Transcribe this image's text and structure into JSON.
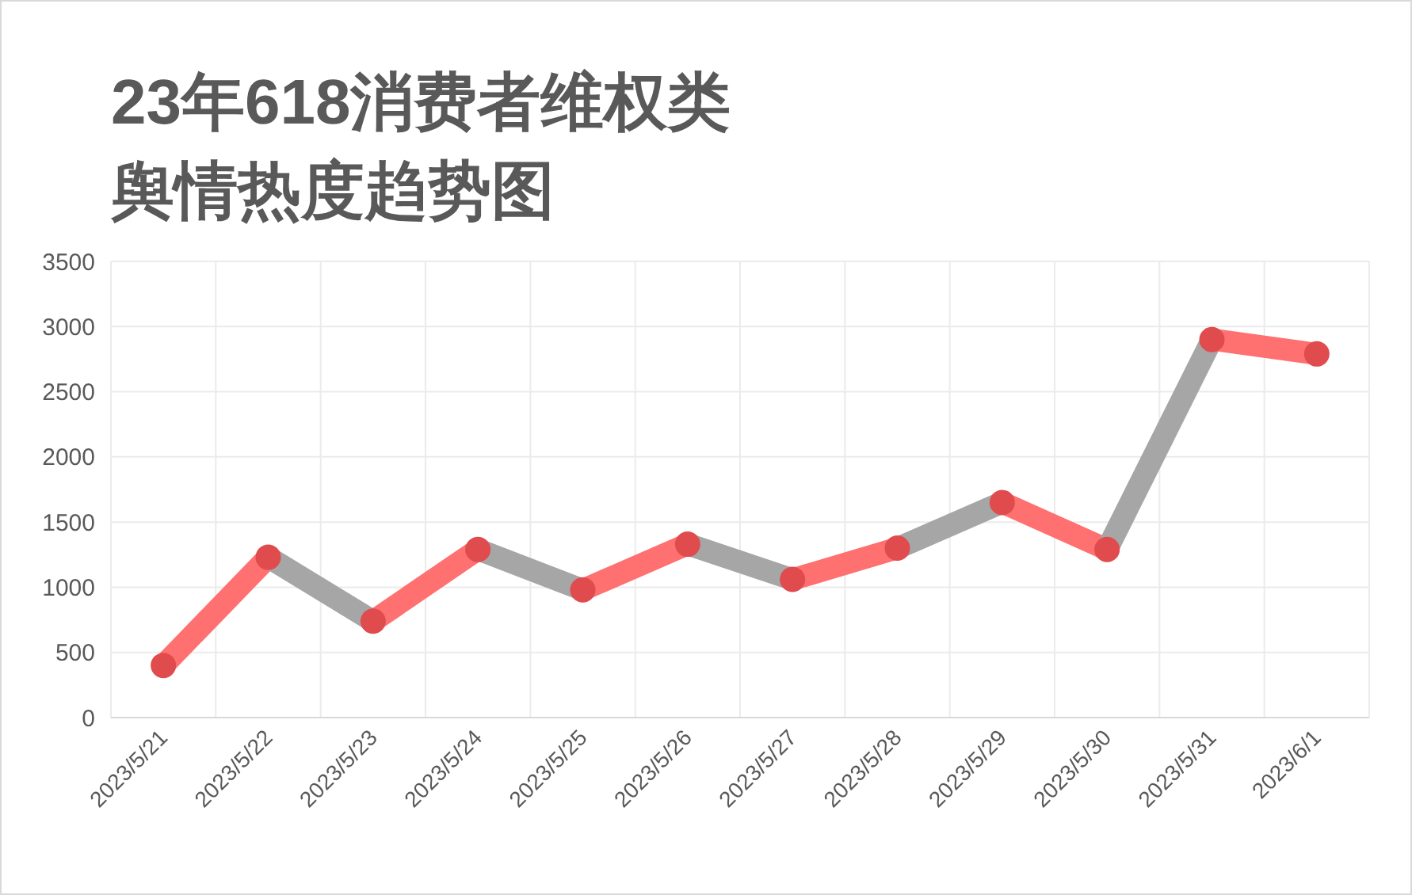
{
  "chart_data": {
    "type": "line",
    "title": "23年618消费者维权类舆情热度趋势图",
    "categories": [
      "2023/5/21",
      "2023/5/22",
      "2023/5/23",
      "2023/5/24",
      "2023/5/25",
      "2023/5/26",
      "2023/5/27",
      "2023/5/28",
      "2023/5/29",
      "2023/5/30",
      "2023/5/31",
      "2023/6/1"
    ],
    "series": [
      {
        "color": "#ff7070",
        "values": [
          400,
          1230,
          null,
          null,
          null,
          null,
          null,
          null,
          null,
          null,
          null,
          null
        ]
      },
      {
        "color": "#a6a6a6",
        "values": [
          null,
          1230,
          740,
          null,
          null,
          null,
          null,
          null,
          null,
          null,
          null,
          null
        ]
      },
      {
        "color": "#ff7070",
        "values": [
          null,
          null,
          740,
          1290,
          null,
          null,
          null,
          null,
          null,
          null,
          null,
          null
        ]
      },
      {
        "color": "#a6a6a6",
        "values": [
          null,
          null,
          null,
          1290,
          980,
          null,
          null,
          null,
          null,
          null,
          null,
          null
        ]
      },
      {
        "color": "#ff7070",
        "values": [
          null,
          null,
          null,
          null,
          980,
          1330,
          null,
          null,
          null,
          null,
          null,
          null
        ]
      },
      {
        "color": "#a6a6a6",
        "values": [
          null,
          null,
          null,
          null,
          null,
          1330,
          1060,
          null,
          null,
          null,
          null,
          null
        ]
      },
      {
        "color": "#ff7070",
        "values": [
          null,
          null,
          null,
          null,
          null,
          null,
          1060,
          1300,
          null,
          null,
          null,
          null
        ]
      },
      {
        "color": "#a6a6a6",
        "values": [
          null,
          null,
          null,
          null,
          null,
          null,
          null,
          1300,
          1650,
          null,
          null,
          null
        ]
      },
      {
        "color": "#ff7070",
        "values": [
          null,
          null,
          null,
          null,
          null,
          null,
          null,
          null,
          1650,
          1290,
          null,
          null
        ]
      },
      {
        "color": "#a6a6a6",
        "values": [
          null,
          null,
          null,
          null,
          null,
          null,
          null,
          null,
          null,
          1290,
          2900,
          null
        ]
      },
      {
        "color": "#ff7070",
        "values": [
          null,
          null,
          null,
          null,
          null,
          null,
          null,
          null,
          null,
          null,
          2900,
          2790
        ]
      },
      {
        "type": "scatter",
        "marker": "circle",
        "color": "#e04b4e",
        "values": [
          400,
          1230,
          740,
          1290,
          980,
          1330,
          1060,
          1300,
          1650,
          1290,
          2900,
          2790
        ]
      }
    ],
    "ylim": [
      0,
      3500
    ],
    "yticks": [
      0,
      500,
      1000,
      1500,
      2000,
      2500,
      3000,
      3500
    ],
    "grid": true
  }
}
